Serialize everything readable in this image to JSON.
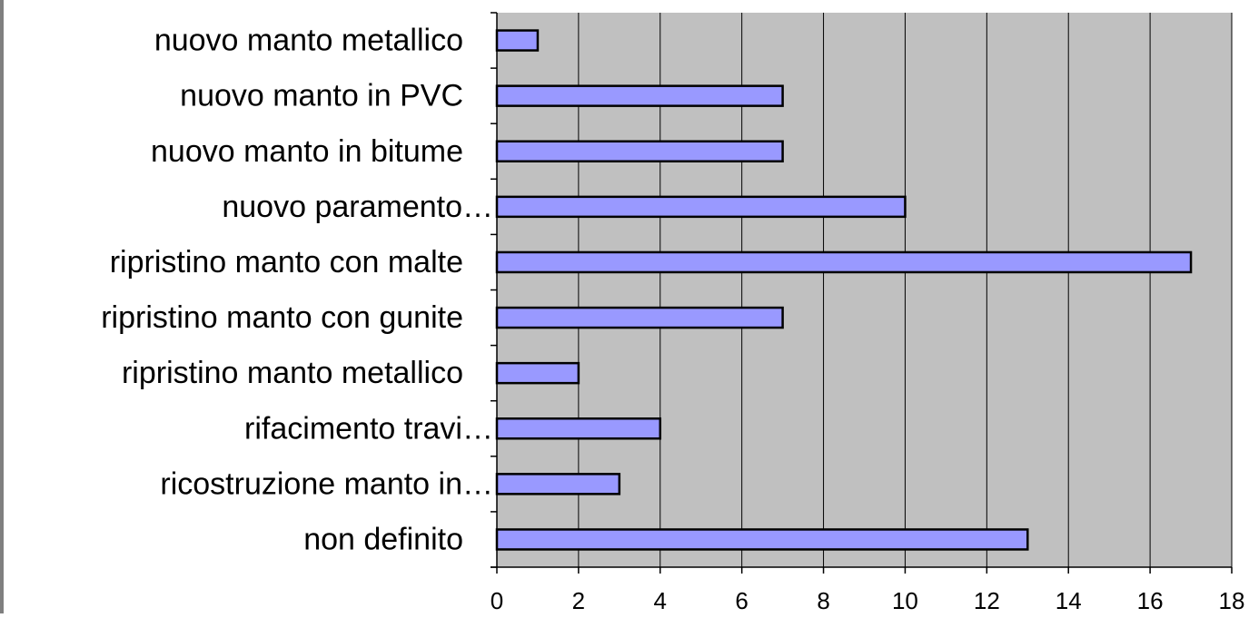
{
  "chart_data": {
    "type": "bar",
    "orientation": "horizontal",
    "categories": [
      "nuovo manto metallico",
      "nuovo manto in PVC",
      "nuovo manto in bitume",
      "nuovo paramento…",
      "ripristino manto con malte",
      "ripristino manto con gunite",
      "ripristino manto metallico",
      "rifacimento travi…",
      "ricostruzione manto in…",
      "non definito"
    ],
    "values": [
      1,
      7,
      7,
      10,
      17,
      7,
      2,
      4,
      3,
      13
    ],
    "xlim": [
      0,
      18
    ],
    "xticks": [
      "0",
      "2",
      "4",
      "6",
      "8",
      "10",
      "12",
      "14",
      "16",
      "18"
    ],
    "title": "",
    "xlabel": "",
    "ylabel": "",
    "grid": "vertical",
    "legend": "none"
  },
  "colors": {
    "plot_background": "#c0c0c0",
    "bar_fill": "#9999ff",
    "bar_stroke": "#000000",
    "gridline": "#000000",
    "axis": "#000000",
    "text": "#000000",
    "frame_border": "#7f7f7f"
  }
}
